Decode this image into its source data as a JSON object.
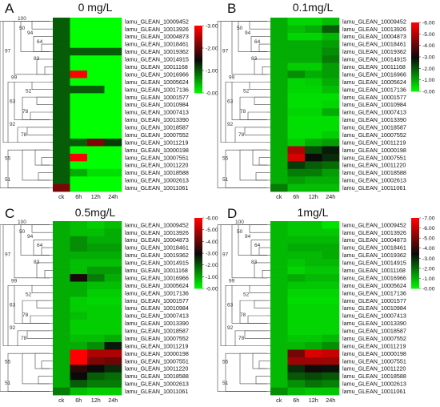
{
  "chart_data": [
    {
      "type": "heatmap",
      "panel_letter": "A",
      "title": "0 mg/L",
      "columns": [
        "ck",
        "6h",
        "12h",
        "24h"
      ],
      "rows": [
        "lamu_GLEAN_10009452",
        "lamu_GLEAN_10013926",
        "lamu_GLEAN_10004873",
        "lamu_GLEAN_10018461",
        "lamu_GLEAN_10019362",
        "lamu_GLEAN_10014915",
        "lamu_GLEAN_10011168",
        "lamu_GLEAN_10016966",
        "lamu_GLEAN_10005624",
        "lamu_GLEAN_10017136",
        "lamu_GLEAN_10001577",
        "lamu_GLEAN_10010984",
        "lamu_GLEAN_10007413",
        "lamu_GLEAN_10013390",
        "lamu_GLEAN_10018587",
        "lamu_GLEAN_10007552",
        "lamu_GLEAN_10011219",
        "lamu_GLEAN_10000198",
        "lamu_GLEAN_10007551",
        "lamu_GLEAN_10011220",
        "lamu_GLEAN_10018588",
        "lamu_GLEAN_10002613",
        "lamu_GLEAN_10011061"
      ],
      "values": [
        [
          1.0,
          0,
          0,
          0
        ],
        [
          1.0,
          0,
          0,
          0
        ],
        [
          1.0,
          0,
          0,
          0
        ],
        [
          1.0,
          0,
          0,
          0
        ],
        [
          1.0,
          1.0,
          1.0,
          1.0
        ],
        [
          1.0,
          0,
          0,
          0
        ],
        [
          1.0,
          0,
          0,
          0
        ],
        [
          1.0,
          3.0,
          0,
          0
        ],
        [
          1.0,
          0,
          0,
          0
        ],
        [
          1.0,
          1.0,
          1.0,
          0
        ],
        [
          1.0,
          0,
          0,
          0
        ],
        [
          1.0,
          0,
          0,
          0
        ],
        [
          1.0,
          0,
          0,
          0
        ],
        [
          1.0,
          0,
          0,
          0
        ],
        [
          1.0,
          0,
          0,
          0
        ],
        [
          1.0,
          0,
          0,
          0
        ],
        [
          1.0,
          1.0,
          2.2,
          1.2
        ],
        [
          1.0,
          0,
          0,
          0
        ],
        [
          1.0,
          3.0,
          0,
          0
        ],
        [
          1.0,
          0,
          0,
          0
        ],
        [
          1.0,
          0.5,
          0.2,
          0.2
        ],
        [
          1.0,
          0,
          0,
          0
        ],
        [
          2.2,
          0,
          0,
          0
        ]
      ],
      "colorbar_ticks": [
        "3.00",
        "2.00",
        "1.00",
        "0.00"
      ],
      "vmin": 0,
      "vmax": 3,
      "dendrogram_labels": [
        "100",
        "50",
        "94",
        "64",
        "97",
        "83",
        "99",
        "52",
        "63",
        "78",
        "92",
        "78",
        "55",
        "51"
      ]
    },
    {
      "type": "heatmap",
      "panel_letter": "B",
      "title": "0.1mg/L",
      "columns": [
        "ck",
        "6h",
        "12h",
        "24h"
      ],
      "rows": [
        "lamu_GLEAN_10009452",
        "lamu_GLEAN_10013926",
        "lamu_GLEAN_10004873",
        "lamu_GLEAN_10018461",
        "lamu_GLEAN_10019362",
        "lamu_GLEAN_10014915",
        "lamu_GLEAN_10011168",
        "lamu_GLEAN_10016966",
        "lamu_GLEAN_10005624",
        "lamu_GLEAN_10017136",
        "lamu_GLEAN_10001577",
        "lamu_GLEAN_10010984",
        "lamu_GLEAN_10007413",
        "lamu_GLEAN_10013390",
        "lamu_GLEAN_10018587",
        "lamu_GLEAN_10007552",
        "lamu_GLEAN_10011219",
        "lamu_GLEAN_10000198",
        "lamu_GLEAN_10007551",
        "lamu_GLEAN_10011220",
        "lamu_GLEAN_10018588",
        "lamu_GLEAN_10002613",
        "lamu_GLEAN_10011061"
      ],
      "values": [
        [
          1.0,
          0.5,
          0.5,
          0.8
        ],
        [
          1.0,
          0.8,
          1.0,
          2.0
        ],
        [
          1.0,
          0.5,
          0.5,
          0.9
        ],
        [
          1.0,
          1.0,
          1.0,
          1.2
        ],
        [
          1.0,
          1.0,
          1.0,
          1.4
        ],
        [
          1.0,
          1.0,
          1.0,
          1.6
        ],
        [
          1.0,
          0.6,
          0.6,
          1.2
        ],
        [
          1.0,
          1.4,
          1.0,
          1.2
        ],
        [
          1.0,
          0.5,
          0.6,
          1.0
        ],
        [
          1.0,
          0.5,
          0.5,
          0.8
        ],
        [
          1.0,
          0.4,
          0.4,
          0.4
        ],
        [
          1.0,
          0.4,
          0.4,
          0.5
        ],
        [
          1.0,
          0.5,
          0.5,
          1.0
        ],
        [
          1.0,
          0.4,
          0.4,
          0.4
        ],
        [
          1.0,
          0.4,
          0.4,
          0.4
        ],
        [
          1.0,
          0.4,
          0.4,
          0.6
        ],
        [
          1.0,
          0.6,
          1.0,
          1.2
        ],
        [
          1.0,
          5.0,
          2.2,
          2.8
        ],
        [
          1.0,
          5.5,
          3.0,
          2.6
        ],
        [
          1.0,
          2.4,
          2.0,
          1.8
        ],
        [
          1.0,
          1.6,
          1.6,
          1.2
        ],
        [
          1.0,
          1.2,
          1.0,
          1.0
        ],
        [
          1.6,
          0.8,
          0.8,
          0.8
        ]
      ],
      "colorbar_ticks": [
        "6.00",
        "5.00",
        "4.00",
        "3.00",
        "2.00",
        "1.00",
        "0.00"
      ],
      "vmin": 0,
      "vmax": 6,
      "dendrogram_labels": [
        "50",
        "94",
        "64",
        "97",
        "83",
        "99",
        "52",
        "63",
        "78",
        "92",
        "78",
        "55",
        "51"
      ]
    },
    {
      "type": "heatmap",
      "panel_letter": "C",
      "title": "0.5mg/L",
      "columns": [
        "ck",
        "6h",
        "12h",
        "24h"
      ],
      "rows": [
        "lamu_GLEAN_10009452",
        "lamu_GLEAN_10013926",
        "lamu_GLEAN_10004873",
        "lamu_GLEAN_10018461",
        "lamu_GLEAN_10019362",
        "lamu_GLEAN_10014915",
        "lamu_GLEAN_10011168",
        "lamu_GLEAN_10016966",
        "lamu_GLEAN_10005624",
        "lamu_GLEAN_10017136",
        "lamu_GLEAN_10001577",
        "lamu_GLEAN_10010984",
        "lamu_GLEAN_10007413",
        "lamu_GLEAN_10013390",
        "lamu_GLEAN_10018587",
        "lamu_GLEAN_10007552",
        "lamu_GLEAN_10011219",
        "lamu_GLEAN_10000198",
        "lamu_GLEAN_10007551",
        "lamu_GLEAN_10011220",
        "lamu_GLEAN_10018588",
        "lamu_GLEAN_10002613",
        "lamu_GLEAN_10011061"
      ],
      "values": [
        [
          1.0,
          0.8,
          0.6,
          0.8
        ],
        [
          1.0,
          0.8,
          0.8,
          1.0
        ],
        [
          1.0,
          1.4,
          1.0,
          1.0
        ],
        [
          1.0,
          1.4,
          1.2,
          1.2
        ],
        [
          1.0,
          1.0,
          1.0,
          1.0
        ],
        [
          1.0,
          0.8,
          0.8,
          0.8
        ],
        [
          1.0,
          0.8,
          1.2,
          1.2
        ],
        [
          1.0,
          3.2,
          1.6,
          1.0
        ],
        [
          1.0,
          1.0,
          0.8,
          0.8
        ],
        [
          1.0,
          1.0,
          0.6,
          0.6
        ],
        [
          1.0,
          0.6,
          0.5,
          0.5
        ],
        [
          1.0,
          0.6,
          0.6,
          0.6
        ],
        [
          1.0,
          0.8,
          0.6,
          0.6
        ],
        [
          1.0,
          0.6,
          0.6,
          0.6
        ],
        [
          1.0,
          0.6,
          0.6,
          0.6
        ],
        [
          1.0,
          0.8,
          0.8,
          1.0
        ],
        [
          1.0,
          1.0,
          1.4,
          2.8
        ],
        [
          1.0,
          6.0,
          5.0,
          5.0
        ],
        [
          1.0,
          6.0,
          4.4,
          4.2
        ],
        [
          1.0,
          3.4,
          3.0,
          2.6
        ],
        [
          1.0,
          3.0,
          2.0,
          1.8
        ],
        [
          1.0,
          2.0,
          1.6,
          1.6
        ],
        [
          1.6,
          0.8,
          0.6,
          0.6
        ]
      ],
      "colorbar_ticks": [
        "6.00",
        "5.00",
        "4.00",
        "3.00",
        "2.00",
        "1.00",
        "0.00"
      ],
      "vmin": 0,
      "vmax": 6,
      "dendrogram_labels": [
        "100",
        "50",
        "94",
        "64",
        "97",
        "83",
        "99",
        "52",
        "63",
        "78",
        "92",
        "78",
        "55",
        "51"
      ]
    },
    {
      "type": "heatmap",
      "panel_letter": "D",
      "title": "1mg/L",
      "columns": [
        "ck",
        "6h",
        "12h",
        "24h"
      ],
      "rows": [
        "lamu_GLEAN_10009452",
        "lamu_GLEAN_10013926",
        "lamu_GLEAN_10004873",
        "lamu_GLEAN_10018461",
        "lamu_GLEAN_10019362",
        "lamu_GLEAN_10014915",
        "lamu_GLEAN_10011168",
        "lamu_GLEAN_10016966",
        "lamu_GLEAN_10005624",
        "lamu_GLEAN_10017136",
        "lamu_GLEAN_10001577",
        "lamu_GLEAN_10010984",
        "lamu_GLEAN_10007413",
        "lamu_GLEAN_10013390",
        "lamu_GLEAN_10018587",
        "lamu_GLEAN_10007552",
        "lamu_GLEAN_10011219",
        "lamu_GLEAN_10000198",
        "lamu_GLEAN_10007551",
        "lamu_GLEAN_10011220",
        "lamu_GLEAN_10018588",
        "lamu_GLEAN_10002613",
        "lamu_GLEAN_10011061"
      ],
      "values": [
        [
          1.0,
          0.8,
          0.8,
          0.4
        ],
        [
          1.0,
          0.8,
          0.8,
          0.8
        ],
        [
          1.0,
          1.0,
          1.0,
          1.0
        ],
        [
          1.0,
          1.2,
          1.2,
          1.2
        ],
        [
          1.0,
          1.0,
          1.0,
          1.2
        ],
        [
          1.0,
          0.8,
          1.0,
          1.0
        ],
        [
          1.0,
          0.6,
          0.8,
          0.8
        ],
        [
          1.0,
          1.2,
          1.0,
          1.0
        ],
        [
          1.0,
          0.8,
          0.8,
          0.8
        ],
        [
          1.0,
          0.6,
          0.6,
          0.6
        ],
        [
          1.0,
          0.5,
          0.5,
          0.5
        ],
        [
          1.0,
          0.6,
          0.6,
          0.6
        ],
        [
          1.0,
          0.6,
          0.6,
          0.6
        ],
        [
          1.0,
          0.6,
          0.6,
          0.6
        ],
        [
          1.0,
          0.6,
          0.6,
          0.6
        ],
        [
          1.0,
          0.8,
          0.8,
          1.0
        ],
        [
          1.0,
          1.0,
          1.2,
          1.6
        ],
        [
          1.0,
          5.0,
          6.5,
          6.2
        ],
        [
          1.0,
          5.6,
          5.6,
          5.6
        ],
        [
          1.0,
          3.0,
          3.6,
          3.4
        ],
        [
          1.0,
          2.4,
          2.6,
          2.4
        ],
        [
          1.0,
          1.6,
          2.0,
          1.8
        ],
        [
          1.6,
          1.0,
          0.8,
          0.8
        ]
      ],
      "colorbar_ticks": [
        "7.00",
        "6.00",
        "5.00",
        "4.00",
        "3.00",
        "2.00",
        "1.00",
        "0.00"
      ],
      "vmin": 0,
      "vmax": 7,
      "dendrogram_labels": [
        "100",
        "50",
        "94",
        "64",
        "97",
        "83",
        "99",
        "52",
        "63",
        "78",
        "92",
        "78",
        "55",
        "51"
      ]
    }
  ]
}
